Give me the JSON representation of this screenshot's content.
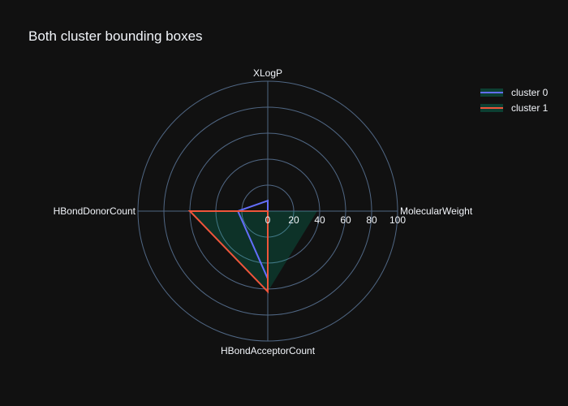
{
  "chart_data": {
    "type": "radar",
    "title": "Both cluster bounding boxes",
    "axes": [
      "MolecularWeight",
      "XLogP",
      "HBondDonorCount",
      "HBondAcceptorCount"
    ],
    "radial_range": [
      0,
      100
    ],
    "radial_ticks": [
      "0",
      "20",
      "40",
      "60",
      "80",
      "100"
    ],
    "grid": true,
    "legend_position": "top-right",
    "series": [
      {
        "name": "cluster 0",
        "color": "#636efa",
        "values": [
          0,
          8,
          23,
          52
        ]
      },
      {
        "name": "cluster 1",
        "color": "#ef553b",
        "values": [
          0,
          0,
          60,
          62
        ]
      }
    ],
    "shaded_area": {
      "color": "#00cc96",
      "values": [
        38,
        0,
        60,
        62
      ]
    }
  }
}
